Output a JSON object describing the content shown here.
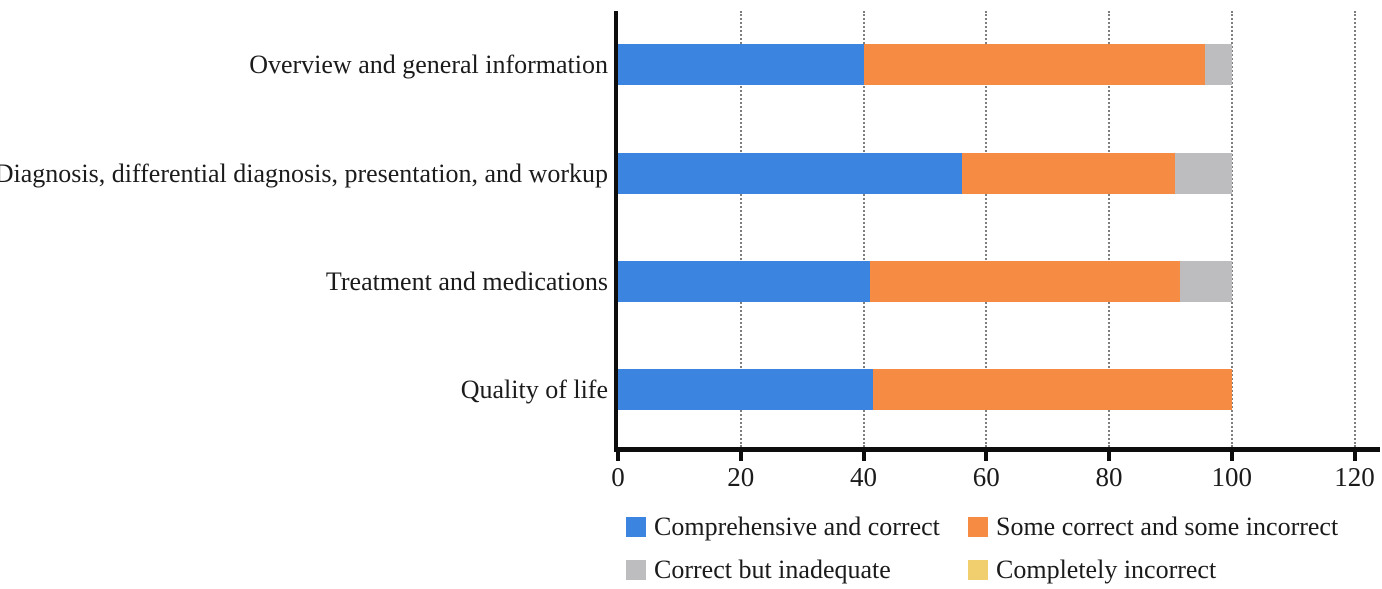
{
  "chart_data": {
    "type": "bar",
    "orientation": "horizontal",
    "stacked": true,
    "values_unit": "percent",
    "title": "",
    "xlabel": "",
    "ylabel": "",
    "categories": [
      "Overview and general information",
      "Diagnosis, differential diagnosis, presentation, and workup",
      "Treatment and medications",
      "Quality of life"
    ],
    "series": [
      {
        "name": "Comprehensive and correct",
        "color": "#3b85e0",
        "values": [
          40.0,
          56.0,
          41.0,
          41.6
        ]
      },
      {
        "name": "Some correct and some incorrect",
        "color": "#f68b44",
        "values": [
          55.7,
          34.8,
          50.5,
          58.4
        ]
      },
      {
        "name": "Correct but inadequate",
        "color": "#bdbdbf",
        "values": [
          4.3,
          9.2,
          8.5,
          0
        ]
      },
      {
        "name": "Completely incorrect",
        "color": "#f1cf6e",
        "values": [
          0,
          0,
          0,
          0
        ]
      }
    ],
    "xlim": [
      0,
      120
    ],
    "xticks": [
      0,
      20,
      40,
      60,
      80,
      100,
      120
    ],
    "grid": "vertical dotted gridlines at each x tick",
    "legend_position": "bottom, two columns by two rows"
  },
  "colors": {
    "background": "#ffffff",
    "axis": "#0d0d0d",
    "gridline": "#7e7e7e",
    "text": "#1b1b1b"
  }
}
